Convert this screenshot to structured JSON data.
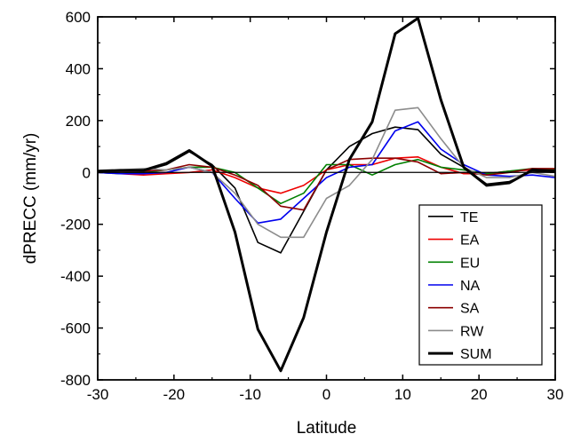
{
  "chart_data": {
    "type": "line",
    "xlabel": "Latitude",
    "ylabel": "dPRECC (mm/yr)",
    "xlim": [
      -30,
      30
    ],
    "ylim": [
      -800,
      600
    ],
    "xticks": [
      -30,
      -20,
      -10,
      0,
      10,
      20,
      30
    ],
    "yticks": [
      -800,
      -600,
      -400,
      -200,
      0,
      200,
      400,
      600
    ],
    "xtick_labels": [
      "-30",
      "-20",
      "-10",
      "0",
      "10",
      "20",
      "30"
    ],
    "ytick_labels": [
      "-800",
      "-600",
      "-400",
      "-200",
      "0",
      "200",
      "400",
      "600"
    ],
    "zero_line": true,
    "grid": false,
    "legend_position": "lower-right",
    "x": [
      -30,
      -27,
      -24,
      -21,
      -18,
      -15,
      -12,
      -9,
      -6,
      -3,
      0,
      3,
      6,
      9,
      12,
      15,
      18,
      21,
      24,
      27,
      30
    ],
    "series": [
      {
        "name": "TE",
        "color": "#000000",
        "width": 1.6,
        "values": [
          5,
          5,
          5,
          30,
          80,
          30,
          -60,
          -270,
          -310,
          -150,
          10,
          100,
          150,
          175,
          165,
          70,
          20,
          -45,
          -35,
          5,
          0
        ]
      },
      {
        "name": "EA",
        "color": "#ee0000",
        "width": 1.6,
        "values": [
          0,
          -5,
          -10,
          -5,
          0,
          10,
          -20,
          -60,
          -80,
          -50,
          10,
          30,
          30,
          55,
          60,
          20,
          -5,
          -5,
          5,
          10,
          10
        ]
      },
      {
        "name": "EU",
        "color": "#008000",
        "width": 1.6,
        "values": [
          0,
          -5,
          0,
          10,
          20,
          20,
          0,
          -60,
          -120,
          -80,
          30,
          30,
          -10,
          30,
          50,
          20,
          10,
          -5,
          5,
          15,
          10
        ]
      },
      {
        "name": "NA",
        "color": "#0000ee",
        "width": 1.6,
        "values": [
          0,
          -5,
          -5,
          0,
          20,
          0,
          -100,
          -195,
          -180,
          -100,
          -20,
          20,
          30,
          160,
          195,
          90,
          30,
          -10,
          -15,
          -10,
          -20
        ]
      },
      {
        "name": "SA",
        "color": "#8b0000",
        "width": 1.6,
        "values": [
          5,
          5,
          5,
          10,
          30,
          20,
          -10,
          -50,
          -130,
          -145,
          10,
          50,
          55,
          55,
          40,
          -5,
          0,
          -10,
          0,
          15,
          15
        ]
      },
      {
        "name": "RW",
        "color": "#8c8c8c",
        "width": 1.6,
        "values": [
          0,
          10,
          15,
          10,
          20,
          0,
          -80,
          -200,
          -250,
          -250,
          -100,
          -50,
          50,
          240,
          250,
          130,
          20,
          -20,
          -20,
          0,
          -15
        ]
      },
      {
        "name": "SUM",
        "color": "#000000",
        "width": 3,
        "values": [
          5,
          8,
          8,
          35,
          85,
          25,
          -230,
          -605,
          -765,
          -560,
          -230,
          50,
          195,
          535,
          595,
          280,
          20,
          -50,
          -40,
          10,
          5
        ]
      }
    ]
  }
}
